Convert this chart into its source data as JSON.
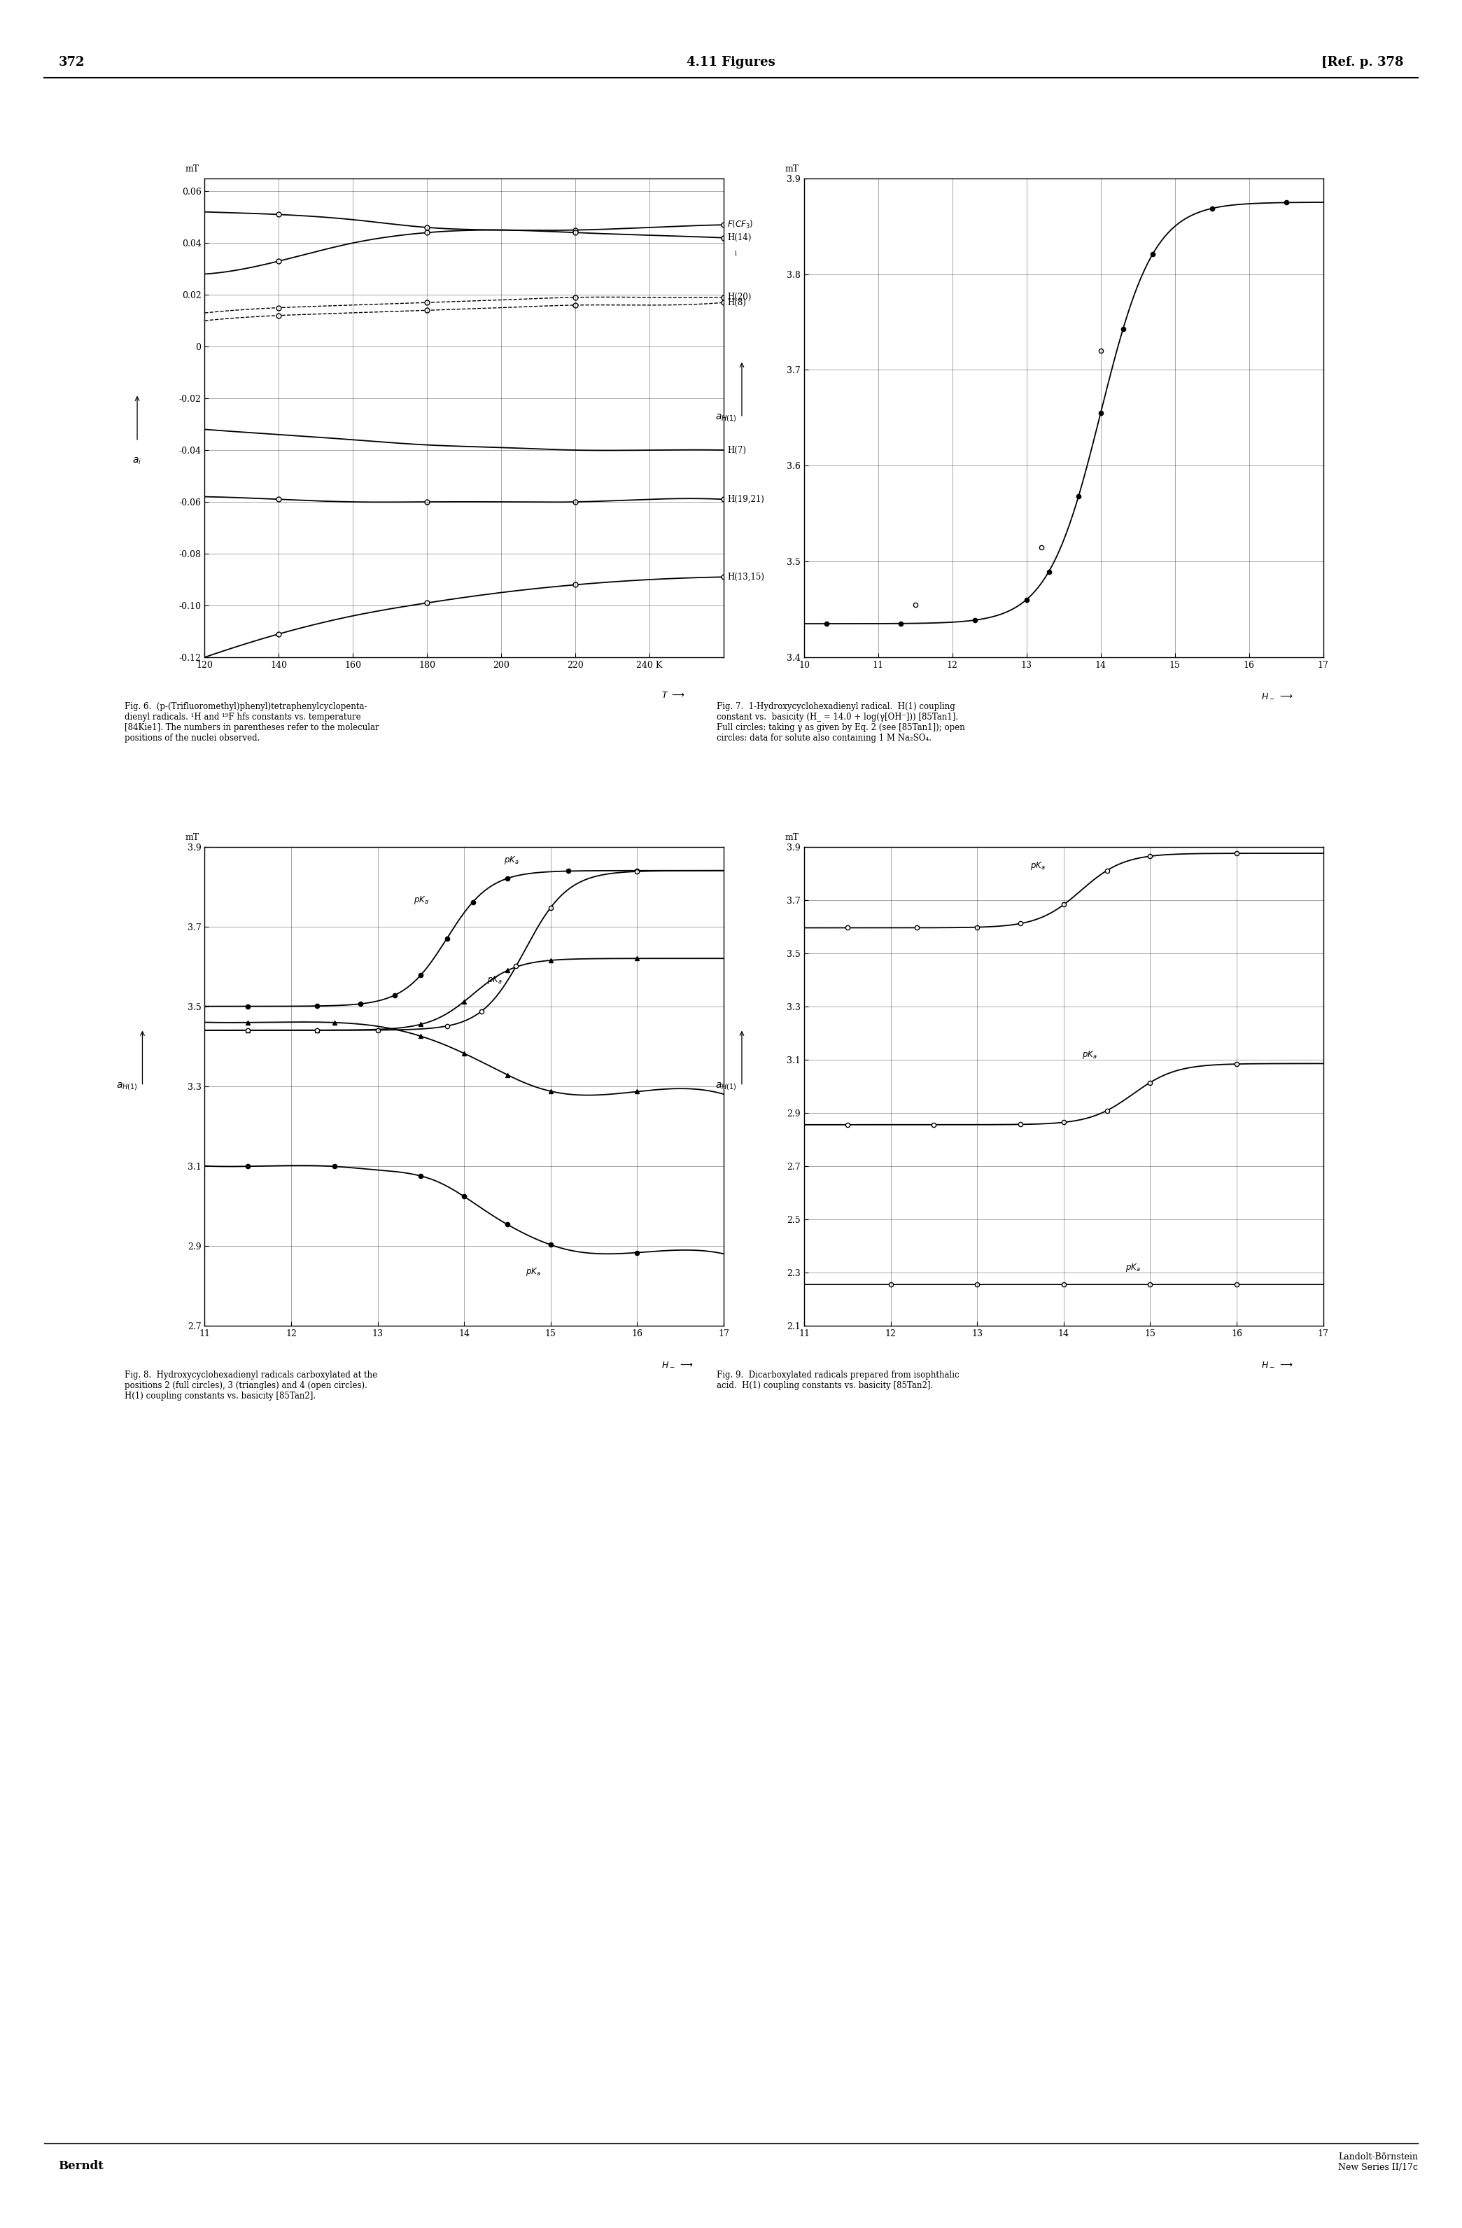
{
  "page_number": "372",
  "center_header": "4.11 Figures",
  "right_header": "[Ref. p. 378",
  "footer_left": "Berndt",
  "footer_right": "Landolt-Börnstein\nNew Series II/17c",
  "fig6": {
    "xmin": 120,
    "xmax": 260,
    "xticks": [
      120,
      140,
      160,
      180,
      200,
      220,
      240
    ],
    "xticklabels": [
      "120",
      "140",
      "160",
      "180",
      "200",
      "220",
      "240 K"
    ],
    "xtick_260": 260,
    "ymin": -0.12,
    "ymax": 0.065,
    "yticks": [
      0.06,
      0.04,
      0.02,
      0,
      -0.02,
      -0.04,
      -0.06,
      -0.08,
      -0.1,
      -0.12
    ],
    "ytick_labels": [
      "0.06",
      "0.04",
      "0.02",
      "0",
      "-0.02",
      "-0.04",
      "-0.06",
      "-0.08",
      "-0.10",
      "-0.12"
    ],
    "caption": "Fig. 6.  (p-(Trifluoromethyl)phenyl)tetraphenylcyclopenta-\ndienyl radicals. ¹H and ¹⁹F hfs constants vs. temperature\n[84Kie1]. The numbers in parentheses refer to the molecular\npositions of the nuclei observed."
  },
  "fig7": {
    "xmin": 10,
    "xmax": 17,
    "xticks": [
      10,
      11,
      12,
      13,
      14,
      15,
      16,
      17
    ],
    "ymin": 3.4,
    "ymax": 3.9,
    "yticks": [
      3.9,
      3.8,
      3.7,
      3.6,
      3.5,
      3.4
    ],
    "ytick_labels": [
      "3.9",
      "3.8",
      "3.7",
      "3.6",
      "3.5",
      "3.4"
    ],
    "caption": "Fig. 7.  1-Hydroxycyclohexadienyl radical.  H(1) coupling\nconstant vs.  basicity (H_ = 14.0 + log(γ[OH⁻])) [85Tan1].\nFull circles: taking γ as given by Eq. 2 (see [85Tan1]); open\ncircles: data for solute also containing 1 M Na₂SO₄."
  },
  "fig8": {
    "xmin": 11,
    "xmax": 17,
    "xticks": [
      11,
      12,
      13,
      14,
      15,
      16,
      17
    ],
    "ymin": 2.7,
    "ymax": 3.9,
    "yticks": [
      3.9,
      3.7,
      3.5,
      3.3,
      3.1,
      2.9,
      2.7
    ],
    "ytick_labels": [
      "3.9",
      "3.7",
      "3.5",
      "3.3",
      "3.1",
      "2.9",
      "2.7"
    ],
    "caption": "Fig. 8.  Hydroxycyclohexadienyl radicals carboxylated at the\npositions 2 (full circles), 3 (triangles) and 4 (open circles).\nH(1) coupling constants vs. basicity [85Tan2]."
  },
  "fig9": {
    "xmin": 11,
    "xmax": 17,
    "xticks": [
      11,
      12,
      13,
      14,
      15,
      16,
      17
    ],
    "ymin": 2.1,
    "ymax": 3.9,
    "yticks": [
      3.9,
      3.7,
      3.5,
      3.3,
      3.1,
      2.9,
      2.7,
      2.5,
      2.3,
      2.1
    ],
    "ytick_labels": [
      "3.9",
      "3.7",
      "3.5",
      "3.3",
      "3.1",
      "2.9",
      "2.7",
      "2.5",
      "2.3",
      "2.1"
    ],
    "caption": "Fig. 9.  Dicarboxylated radicals prepared from isophthalic\nacid.  H(1) coupling constants vs. basicity [85Tan2]."
  }
}
